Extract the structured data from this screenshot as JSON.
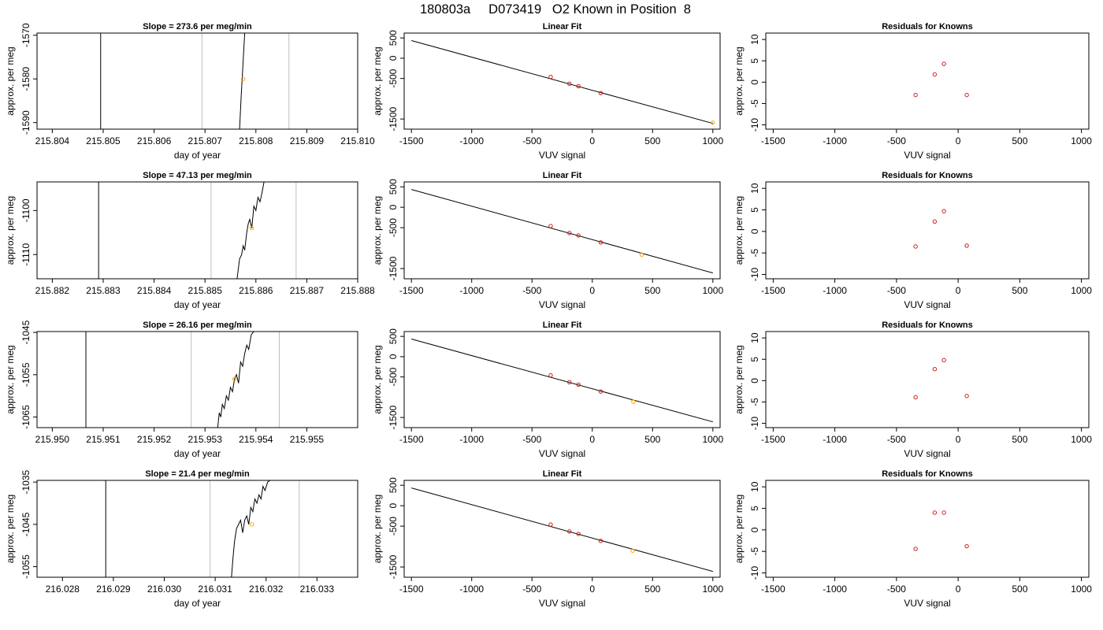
{
  "figure": {
    "title": "180803a     D073419   O2 Known in Position  8"
  },
  "colors": {
    "series_line": "#000000",
    "marker_orange": "#FFA500",
    "marker_red": "#CC2222",
    "vertical_guides": "#BEBEBE"
  },
  "chart_data": [
    {
      "type": "line",
      "row": 1,
      "panel": "time",
      "title": "Slope =  273.6  per meg/min",
      "xlabel": "day of year",
      "ylabel": "approx. per meg",
      "xlim": [
        215.8037,
        215.81
      ],
      "ylim": [
        -1591.5,
        -1569.5
      ],
      "xticks": [
        "215.804",
        "215.805",
        "215.806",
        "215.807",
        "215.808",
        "215.809",
        "215.810"
      ],
      "yticks": [
        "-1570",
        "-1580",
        "-1590"
      ],
      "vlines_black": [
        215.80495
      ],
      "vlines_gray": [
        215.80694,
        215.80865
      ],
      "series": [
        {
          "x": [
            215.80768,
            215.80771,
            215.80775,
            215.80778
          ],
          "y": [
            -1591.5,
            -1584,
            -1576,
            -1569.5
          ]
        }
      ],
      "highlight": {
        "x": 215.80775,
        "y": -1580
      }
    },
    {
      "type": "scatter",
      "row": 1,
      "panel": "fit",
      "title": "Linear Fit",
      "xlabel": "VUV signal",
      "ylabel": "approx. per meg",
      "xlim": [
        -1560,
        1060
      ],
      "ylim": [
        -1750,
        620
      ],
      "xticks": [
        "-1500",
        "-1000",
        "-500",
        "0",
        "500",
        "1000"
      ],
      "yticks": [
        "500",
        "0",
        "-500",
        "-1500"
      ],
      "fit_line": {
        "x": [
          -1500,
          1000
        ],
        "y": [
          435,
          -1608
        ]
      },
      "points": {
        "x": [
          -345,
          -190,
          -115,
          70
        ],
        "y": [
          -460,
          -630,
          -690,
          -860
        ]
      },
      "highlight": {
        "x": 1000,
        "y": -1590
      }
    },
    {
      "type": "scatter",
      "row": 1,
      "panel": "residuals",
      "title": "Residuals for Knowns",
      "xlabel": "VUV signal",
      "ylabel": "approx. per meg",
      "xlim": [
        -1560,
        1060
      ],
      "ylim": [
        -11,
        11.5
      ],
      "xticks": [
        "-1500",
        "-1000",
        "-500",
        "0",
        "500",
        "1000"
      ],
      "yticks": [
        "10",
        "5",
        "0",
        "-5",
        "-10"
      ],
      "points": {
        "x": [
          -345,
          -190,
          -115,
          70
        ],
        "y": [
          -3.0,
          1.8,
          4.3,
          -3.0
        ]
      }
    },
    {
      "type": "line",
      "row": 2,
      "panel": "time",
      "title": "Slope =  47.13  per meg/min",
      "xlabel": "day of year",
      "ylabel": "approx. per meg",
      "xlim": [
        215.8817,
        215.888
      ],
      "ylim": [
        -1115.5,
        -1093.5
      ],
      "xticks": [
        "215.882",
        "215.883",
        "215.884",
        "215.885",
        "215.886",
        "215.887",
        "215.888"
      ],
      "yticks": [
        "-1100",
        "-1110"
      ],
      "vlines_black": [
        215.88291
      ],
      "vlines_gray": [
        215.88512,
        215.88679
      ],
      "series": [
        {
          "x": [
            215.88563,
            215.88568,
            215.88572,
            215.88575,
            215.88578,
            215.88582,
            215.88585,
            215.88588,
            215.88592,
            215.88596,
            215.886,
            215.88604,
            215.88608,
            215.88612,
            215.88616,
            215.8862
          ],
          "y": [
            -1115.5,
            -1111,
            -1110,
            -1108,
            -1109,
            -1105,
            -1103,
            -1102,
            -1104,
            -1099,
            -1100,
            -1097,
            -1098,
            -1096,
            -1093.5,
            -1093.5
          ]
        }
      ],
      "highlight": {
        "x": 215.88592,
        "y": -1104
      }
    },
    {
      "type": "scatter",
      "row": 2,
      "panel": "fit",
      "title": "Linear Fit",
      "xlabel": "VUV signal",
      "ylabel": "approx. per meg",
      "xlim": [
        -1560,
        1060
      ],
      "ylim": [
        -1750,
        620
      ],
      "xticks": [
        "-1500",
        "-1000",
        "-500",
        "0",
        "500",
        "1000"
      ],
      "yticks": [
        "500",
        "0",
        "-500",
        "-1500"
      ],
      "fit_line": {
        "x": [
          -1500,
          1000
        ],
        "y": [
          435,
          -1608
        ]
      },
      "points": {
        "x": [
          -345,
          -190,
          -115,
          70
        ],
        "y": [
          -460,
          -630,
          -690,
          -860
        ]
      },
      "highlight": {
        "x": 410,
        "y": -1160
      }
    },
    {
      "type": "scatter",
      "row": 2,
      "panel": "residuals",
      "title": "Residuals for Knowns",
      "xlabel": "VUV signal",
      "ylabel": "approx. per meg",
      "xlim": [
        -1560,
        1060
      ],
      "ylim": [
        -11,
        11.5
      ],
      "xticks": [
        "-1500",
        "-1000",
        "-500",
        "0",
        "500",
        "1000"
      ],
      "yticks": [
        "10",
        "5",
        "0",
        "-5",
        "-10"
      ],
      "points": {
        "x": [
          -345,
          -190,
          -115,
          70
        ],
        "y": [
          -3.5,
          2.3,
          4.7,
          -3.3
        ]
      }
    },
    {
      "type": "line",
      "row": 3,
      "panel": "time",
      "title": "Slope =  26.16  per meg/min",
      "xlabel": "day of year",
      "ylabel": "approx. per meg",
      "xlim": [
        215.9497,
        215.956
      ],
      "ylim": [
        -1067.5,
        -1044.8
      ],
      "xticks": [
        "215.950",
        "215.951",
        "215.952",
        "215.953",
        "215.954",
        "215.955"
      ],
      "yticks": [
        "-1045",
        "-1055",
        "-1065"
      ],
      "vlines_black": [
        215.95066
      ],
      "vlines_gray": [
        215.95273,
        215.95446
      ],
      "series": [
        {
          "x": [
            215.95325,
            215.95328,
            215.95331,
            215.95334,
            215.95338,
            215.95342,
            215.95346,
            215.9535,
            215.95354,
            215.95358,
            215.95362,
            215.95366,
            215.9537,
            215.95374,
            215.95378,
            215.95382,
            215.95386,
            215.95391,
            215.95396
          ],
          "y": [
            -1067.5,
            -1064,
            -1065,
            -1062,
            -1063,
            -1060,
            -1061,
            -1058,
            -1059,
            -1056,
            -1055,
            -1057,
            -1052,
            -1053,
            -1050,
            -1048,
            -1049,
            -1045.5,
            -1044.8
          ]
        }
      ],
      "highlight": {
        "x": 215.95358,
        "y": -1056
      }
    },
    {
      "type": "scatter",
      "row": 3,
      "panel": "fit",
      "title": "Linear Fit",
      "xlabel": "VUV signal",
      "ylabel": "approx. per meg",
      "xlim": [
        -1560,
        1060
      ],
      "ylim": [
        -1750,
        620
      ],
      "xticks": [
        "-1500",
        "-1000",
        "-500",
        "0",
        "500",
        "1000"
      ],
      "yticks": [
        "500",
        "0",
        "-500",
        "-1500"
      ],
      "fit_line": {
        "x": [
          -1500,
          1000
        ],
        "y": [
          435,
          -1608
        ]
      },
      "points": {
        "x": [
          -345,
          -190,
          -115,
          70
        ],
        "y": [
          -460,
          -630,
          -690,
          -860
        ]
      },
      "highlight": {
        "x": 340,
        "y": -1110
      }
    },
    {
      "type": "scatter",
      "row": 3,
      "panel": "residuals",
      "title": "Residuals for Knowns",
      "xlabel": "VUV signal",
      "ylabel": "approx. per meg",
      "xlim": [
        -1560,
        1060
      ],
      "ylim": [
        -11,
        11.5
      ],
      "xticks": [
        "-1500",
        "-1000",
        "-500",
        "0",
        "500",
        "1000"
      ],
      "yticks": [
        "10",
        "5",
        "0",
        "-5",
        "-10"
      ],
      "points": {
        "x": [
          -345,
          -190,
          -115,
          70
        ],
        "y": [
          -3.9,
          2.7,
          4.8,
          -3.6
        ]
      }
    },
    {
      "type": "line",
      "row": 4,
      "panel": "time",
      "title": "Slope =  21.4  per meg/min",
      "xlabel": "day of year",
      "ylabel": "approx. per meg",
      "xlim": [
        216.0275,
        216.0338
      ],
      "ylim": [
        -1057.5,
        -1034.6
      ],
      "xticks": [
        "216.028",
        "216.029",
        "216.030",
        "216.031",
        "216.032",
        "216.033"
      ],
      "yticks": [
        "-1035",
        "-1045",
        "-1055"
      ],
      "vlines_black": [
        216.02885
      ],
      "vlines_gray": [
        216.0309,
        216.03265
      ],
      "series": [
        {
          "x": [
            216.03132,
            216.03135,
            216.03138,
            216.03142,
            216.03146,
            216.0315,
            216.03154,
            216.03158,
            216.03162,
            216.03166,
            216.0317,
            216.03174,
            216.03178,
            216.03182,
            216.03186,
            216.0319,
            216.03194,
            216.03198,
            216.03203,
            216.03208
          ],
          "y": [
            -1057.5,
            -1053,
            -1049,
            -1046,
            -1045,
            -1044,
            -1047,
            -1044,
            -1043,
            -1045,
            -1041,
            -1042,
            -1039,
            -1040,
            -1038,
            -1039,
            -1036,
            -1037,
            -1035,
            -1034.6
          ]
        }
      ],
      "highlight": {
        "x": 216.03172,
        "y": -1045
      }
    },
    {
      "type": "scatter",
      "row": 4,
      "panel": "fit",
      "title": "Linear Fit",
      "xlabel": "VUV signal",
      "ylabel": "approx. per meg",
      "xlim": [
        -1560,
        1060
      ],
      "ylim": [
        -1750,
        620
      ],
      "xticks": [
        "-1500",
        "-1000",
        "-500",
        "0",
        "500",
        "1000"
      ],
      "yticks": [
        "500",
        "0",
        "-500",
        "-1500"
      ],
      "fit_line": {
        "x": [
          -1500,
          1000
        ],
        "y": [
          435,
          -1608
        ]
      },
      "points": {
        "x": [
          -345,
          -190,
          -115,
          70
        ],
        "y": [
          -460,
          -630,
          -690,
          -860
        ]
      },
      "highlight": {
        "x": 335,
        "y": -1100
      }
    },
    {
      "type": "scatter",
      "row": 4,
      "panel": "residuals",
      "title": "Residuals for Knowns",
      "xlabel": "VUV signal",
      "ylabel": "approx. per meg",
      "xlim": [
        -1560,
        1060
      ],
      "ylim": [
        -11,
        11.5
      ],
      "xticks": [
        "-1500",
        "-1000",
        "-500",
        "0",
        "500",
        "1000"
      ],
      "yticks": [
        "10",
        "5",
        "0",
        "-5",
        "-10"
      ],
      "points": {
        "x": [
          -345,
          -190,
          -115,
          70
        ],
        "y": [
          -4.4,
          4.0,
          4.0,
          -3.8
        ]
      }
    }
  ]
}
